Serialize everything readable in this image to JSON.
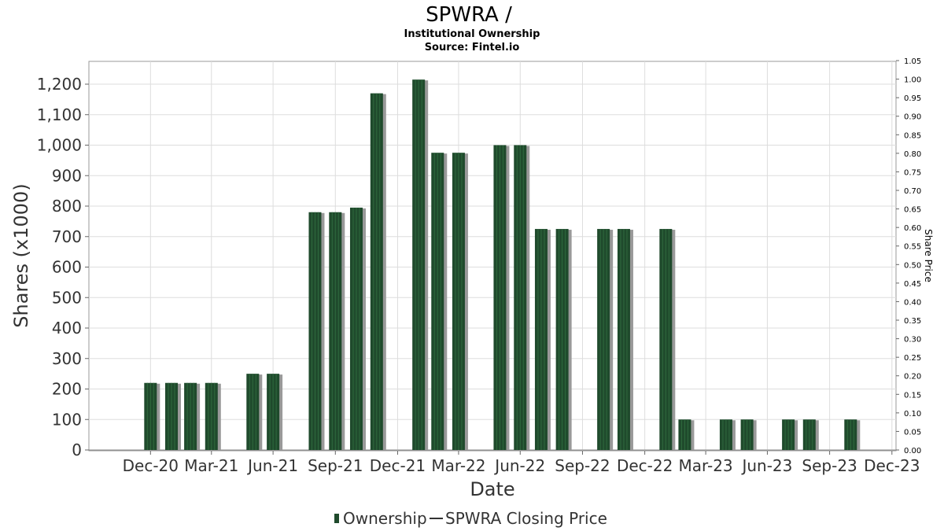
{
  "chart_data": {
    "type": "bar",
    "title": "SPWRA /",
    "subtitle": "Institutional Ownership",
    "source": "Source: Fintel.io",
    "xlabel": "Date",
    "ylabel": "Shares (x1000)",
    "y2label": "Share Price",
    "ylim": [
      0,
      1250
    ],
    "y2lim": [
      0,
      1.05
    ],
    "yticks": [
      "0",
      "100",
      "200",
      "300",
      "400",
      "500",
      "600",
      "700",
      "800",
      "900",
      "1,000",
      "1,100",
      "1,200"
    ],
    "y2ticks": [
      "0.00",
      "0.05",
      "0.10",
      "0.15",
      "0.20",
      "0.25",
      "0.30",
      "0.35",
      "0.40",
      "0.45",
      "0.50",
      "0.55",
      "0.60",
      "0.65",
      "0.70",
      "0.75",
      "0.80",
      "0.85",
      "0.90",
      "0.95",
      "1.00",
      "1.05"
    ],
    "xticks": [
      "Dec-20",
      "Mar-21",
      "Jun-21",
      "Sep-21",
      "Dec-21",
      "Mar-22",
      "Jun-22",
      "Sep-22",
      "Dec-22",
      "Mar-23",
      "Jun-23",
      "Sep-23",
      "Dec-23"
    ],
    "grid": true,
    "legend_position": "bottom",
    "series": [
      {
        "name": "Ownership",
        "color": "#1f4a2c",
        "points": [
          {
            "date": "2020-12-31",
            "value": 220
          },
          {
            "date": "2021-01-31",
            "value": 220
          },
          {
            "date": "2021-02-28",
            "value": 220
          },
          {
            "date": "2021-03-31",
            "value": 220
          },
          {
            "date": "2021-05-31",
            "value": 250
          },
          {
            "date": "2021-06-30",
            "value": 250
          },
          {
            "date": "2021-08-31",
            "value": 780
          },
          {
            "date": "2021-09-30",
            "value": 780
          },
          {
            "date": "2021-10-31",
            "value": 795
          },
          {
            "date": "2021-11-30",
            "value": 1170
          },
          {
            "date": "2022-01-31",
            "value": 1215
          },
          {
            "date": "2022-02-28",
            "value": 975
          },
          {
            "date": "2022-03-31",
            "value": 975
          },
          {
            "date": "2022-05-31",
            "value": 1000
          },
          {
            "date": "2022-06-30",
            "value": 1000
          },
          {
            "date": "2022-07-31",
            "value": 725
          },
          {
            "date": "2022-08-31",
            "value": 725
          },
          {
            "date": "2022-10-31",
            "value": 725
          },
          {
            "date": "2022-11-30",
            "value": 725
          },
          {
            "date": "2023-01-31",
            "value": 725
          },
          {
            "date": "2023-02-28",
            "value": 100
          },
          {
            "date": "2023-04-30",
            "value": 100
          },
          {
            "date": "2023-05-31",
            "value": 100
          },
          {
            "date": "2023-07-31",
            "value": 100
          },
          {
            "date": "2023-08-31",
            "value": 100
          },
          {
            "date": "2023-10-31",
            "value": 100
          }
        ]
      },
      {
        "name": "SPWRA Closing Price",
        "color": "#333333",
        "points": []
      }
    ]
  }
}
